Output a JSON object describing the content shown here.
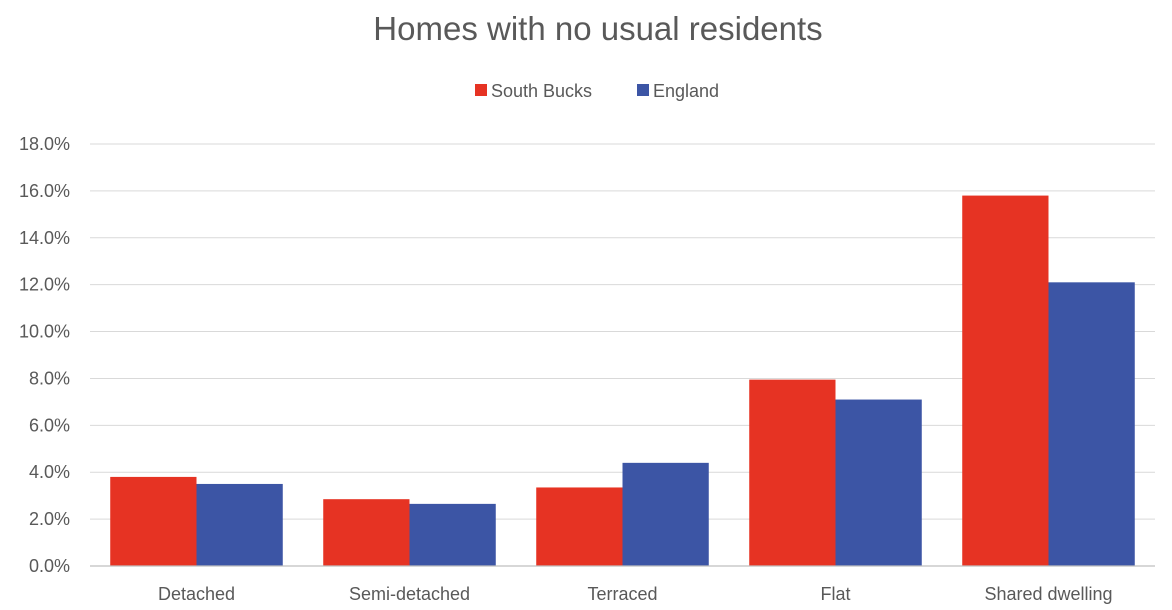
{
  "chart_data": {
    "type": "bar",
    "title": "Homes with no usual residents",
    "categories": [
      "Detached",
      "Semi-detached",
      "Terraced",
      "Flat",
      "Shared dwelling"
    ],
    "series": [
      {
        "name": "South Bucks",
        "color": "#e63323",
        "values": [
          3.8,
          2.85,
          3.35,
          7.95,
          15.8
        ]
      },
      {
        "name": "England",
        "color": "#3c55a5",
        "values": [
          3.5,
          2.65,
          4.4,
          7.1,
          12.1
        ]
      }
    ],
    "ylim": [
      0,
      18
    ],
    "yticks": [
      "0.0%",
      "2.0%",
      "4.0%",
      "6.0%",
      "8.0%",
      "10.0%",
      "12.0%",
      "14.0%",
      "16.0%",
      "18.0%"
    ],
    "xlabel": "",
    "ylabel": "",
    "legend": "top-center",
    "grid": true
  }
}
